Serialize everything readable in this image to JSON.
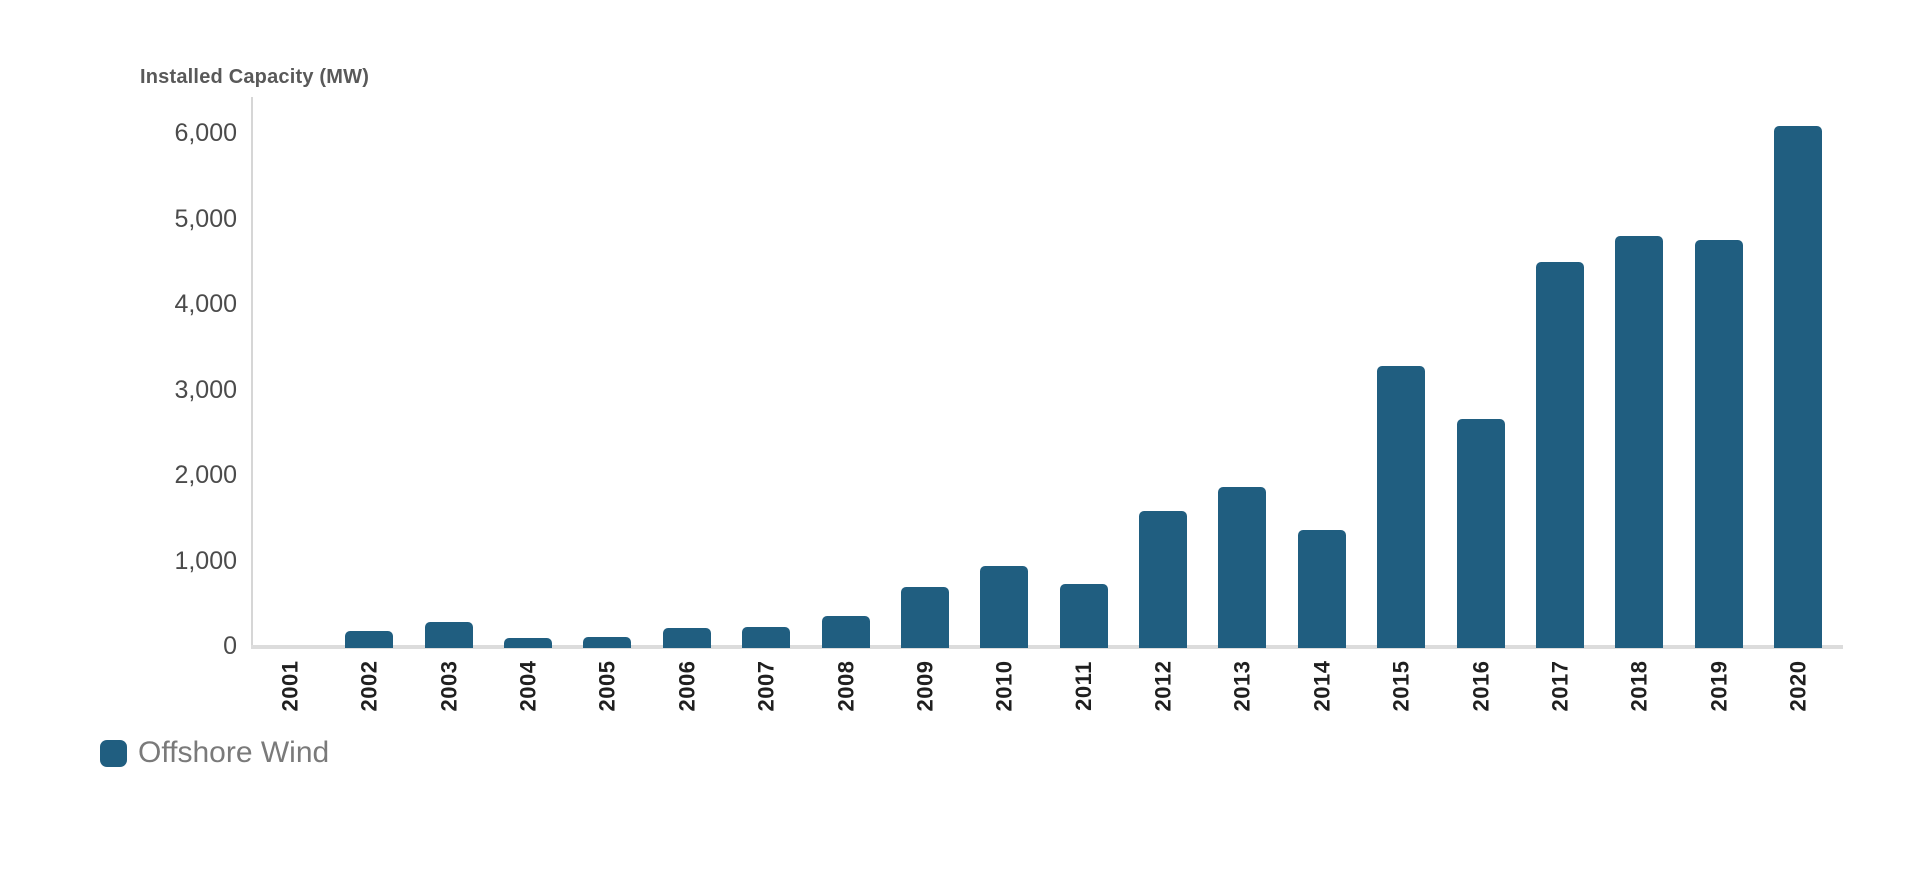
{
  "chart_data": {
    "type": "bar",
    "title": "Installed Capacity (MW)",
    "xlabel": "",
    "ylabel": "Installed Capacity (MW)",
    "categories": [
      "2001",
      "2002",
      "2003",
      "2004",
      "2005",
      "2006",
      "2007",
      "2008",
      "2009",
      "2010",
      "2011",
      "2012",
      "2013",
      "2014",
      "2015",
      "2016",
      "2017",
      "2018",
      "2019",
      "2020"
    ],
    "series": [
      {
        "name": "Offshore Wind",
        "values": [
          0,
          180,
          285,
          90,
          105,
          210,
          220,
          355,
          695,
          930,
          730,
          1575,
          1865,
          1360,
          3275,
          2655,
          4490,
          4795,
          4745,
          6080
        ]
      }
    ],
    "ylim": [
      0,
      6000
    ],
    "yticks": [
      {
        "value": 0,
        "label": "0"
      },
      {
        "value": 1000,
        "label": "1,000"
      },
      {
        "value": 2000,
        "label": "2,000"
      },
      {
        "value": 3000,
        "label": "3,000"
      },
      {
        "value": 4000,
        "label": "4,000"
      },
      {
        "value": 5000,
        "label": "5,000"
      },
      {
        "value": 6000,
        "label": "6,000"
      }
    ],
    "grid": false,
    "bar_color": "#205E80",
    "legend": {
      "position": "bottom-left",
      "entries": [
        {
          "label": "Offshore Wind",
          "color": "#205E80"
        }
      ]
    },
    "colors": {
      "bar": "#205E80",
      "title_text": "#595959",
      "tick_text": "#4B4B4B",
      "category_text": "#1F1F1F",
      "legend_text": "#7A7A7A",
      "axis_line": "#D9D9D9"
    }
  }
}
